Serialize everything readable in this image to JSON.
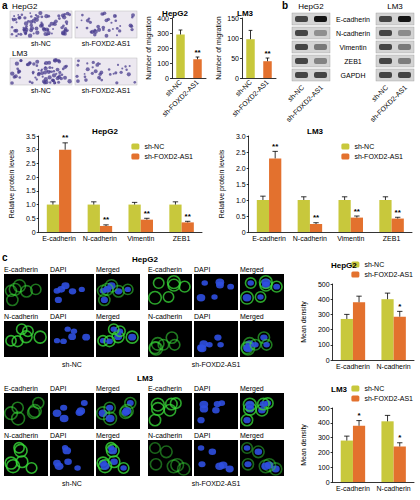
{
  "panel_labels": [
    "a",
    "b",
    "c"
  ],
  "migration_images": [
    {
      "cell_line": "HepG2",
      "conditions": [
        "sh-NC",
        "sh-FOXD2-AS1"
      ]
    },
    {
      "cell_line": "LM3",
      "conditions": [
        "sh-NC",
        "sh-FOXD2-AS1"
      ]
    }
  ],
  "western_blot": {
    "cell_lines": [
      "HepG2",
      "LM3"
    ],
    "proteins": [
      "E-cadherin",
      "N-cadherin",
      "Vimentin",
      "ZEB1",
      "GAPDH"
    ],
    "conditions": [
      "sh-NC",
      "sh-FOXD2-AS1"
    ]
  },
  "immunofluorescence": [
    {
      "cell_line": "HepG2",
      "conditions": [
        "sh-NC",
        "sh-FOXD2-AS1"
      ],
      "rows": [
        [
          "E-cadherin",
          "DAPI",
          "Merged"
        ],
        [
          "N-cadherin",
          "DAPI",
          "Merged"
        ]
      ]
    },
    {
      "cell_line": "LM3",
      "conditions": [
        "sh-NC",
        "sh-FOXD2-AS1"
      ],
      "rows": [
        [
          "E-cadherin",
          "DAPI",
          "Merged"
        ],
        [
          "N-cadherin",
          "DAPI",
          "Merged"
        ]
      ]
    }
  ],
  "chart_data": [
    {
      "type": "bar",
      "title": "HepG2",
      "ylabel": "Number of migration",
      "categories": [
        "sh-NC",
        "sh-FOXD2-AS1"
      ],
      "values": [
        290,
        125
      ],
      "errors": [
        30,
        15
      ],
      "annotations": [
        null,
        "**"
      ],
      "colors": [
        "#c8c83c",
        "#e3712e"
      ],
      "ylim": [
        0,
        400
      ],
      "yticks": [
        0,
        100,
        200,
        300,
        400
      ]
    },
    {
      "type": "bar",
      "title": "LM3",
      "ylabel": "Number of migration",
      "categories": [
        "sh-NC",
        "sh-FOXD2-AS1"
      ],
      "values": [
        97,
        42
      ],
      "errors": [
        22,
        8
      ],
      "annotations": [
        null,
        "**"
      ],
      "colors": [
        "#c8c83c",
        "#e3712e"
      ],
      "ylim": [
        0,
        150
      ],
      "yticks": [
        0,
        50,
        100,
        150
      ]
    },
    {
      "type": "bar",
      "title": "HepG2",
      "ylabel": "Relative protein levels",
      "legend": "upper right",
      "categories": [
        "E-cadherin",
        "N-cadherin",
        "Vimentin",
        "ZEB1"
      ],
      "series": [
        {
          "name": "sh-NC",
          "color": "#c8c83c",
          "values": [
            1,
            1,
            1,
            1
          ],
          "errors": [
            0.1,
            0.1,
            0.08,
            0.1
          ],
          "annotations": [
            null,
            null,
            null,
            null
          ]
        },
        {
          "name": "sh-FOXD2-AS1",
          "color": "#e3712e",
          "values": [
            3.0,
            0.22,
            0.45,
            0.35
          ],
          "errors": [
            0.25,
            0.04,
            0.05,
            0.04
          ],
          "annotations": [
            "**",
            "**",
            "**",
            "**"
          ]
        }
      ],
      "ylim": [
        0,
        3.5
      ],
      "yticks": [
        0,
        0.5,
        {
          "value": 1,
          "label": "1.0"
        },
        1.5,
        {
          "value": 2,
          "label": "2.0"
        },
        2.5,
        {
          "value": 3,
          "label": "3.0"
        },
        3.5
      ]
    },
    {
      "type": "bar",
      "title": "LM3",
      "ylabel": "Relative protein levels",
      "legend": "upper right",
      "categories": [
        "E-cadherin",
        "N-cadherin",
        "Vimentin",
        "ZEB1"
      ],
      "series": [
        {
          "name": "sh-NC",
          "color": "#c8c83c",
          "values": [
            1,
            1,
            1,
            1
          ],
          "errors": [
            0.12,
            0.1,
            0.1,
            0.1
          ],
          "annotations": [
            null,
            null,
            null,
            null
          ]
        },
        {
          "name": "sh-FOXD2-AS1",
          "color": "#e3712e",
          "values": [
            2.3,
            0.25,
            0.45,
            0.42
          ],
          "errors": [
            0.22,
            0.04,
            0.05,
            0.04
          ],
          "annotations": [
            "**",
            "**",
            "**",
            "**"
          ]
        }
      ],
      "ylim": [
        0,
        3
      ],
      "yticks": [
        0,
        0.5,
        {
          "value": 1,
          "label": "1.0"
        },
        1.5,
        {
          "value": 2,
          "label": "2.0"
        },
        2.5,
        {
          "value": 3,
          "label": "3.0"
        }
      ]
    },
    {
      "type": "bar",
      "title": "HepG2",
      "ylabel": "Mean density",
      "legend": "top",
      "categories": [
        "E-cadherin",
        "N-cadherin"
      ],
      "series": [
        {
          "name": "sh-NC",
          "color": "#c8c83c",
          "values": [
            270,
            400
          ],
          "errors": [
            30,
            40
          ],
          "annotations": [
            null,
            null
          ]
        },
        {
          "name": "sh-FOXD2-AS1",
          "color": "#e3712e",
          "values": [
            380,
            285
          ],
          "errors": [
            40,
            35
          ],
          "annotations": [
            null,
            "*"
          ]
        }
      ],
      "ylim": [
        0,
        500
      ],
      "yticks": [
        0,
        100,
        200,
        300,
        400,
        500
      ]
    },
    {
      "type": "bar",
      "title": "LM3",
      "ylabel": "Mean density",
      "legend": "top",
      "categories": [
        "E-cadherin",
        "N-cadherin"
      ],
      "series": [
        {
          "name": "sh-NC",
          "color": "#c8c83c",
          "values": [
            280,
            410
          ],
          "errors": [
            30,
            40
          ],
          "annotations": [
            null,
            null
          ]
        },
        {
          "name": "sh-FOXD2-AS1",
          "color": "#e3712e",
          "values": [
            380,
            240
          ],
          "errors": [
            35,
            25
          ],
          "annotations": [
            "*",
            "*"
          ]
        }
      ],
      "ylim": [
        0,
        500
      ],
      "yticks": [
        0,
        100,
        200,
        300,
        400,
        500
      ]
    }
  ]
}
